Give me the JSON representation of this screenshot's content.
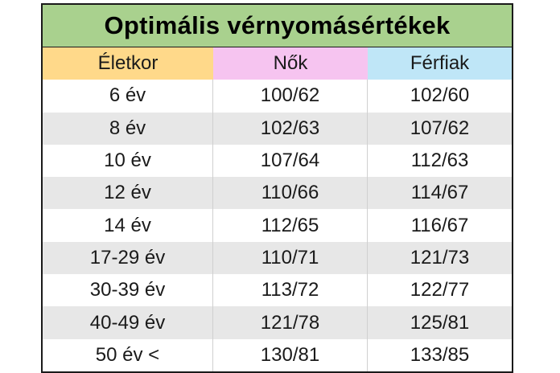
{
  "title": "Optimális vérnyomásértékek",
  "headers": {
    "age": "Életkor",
    "women": "Nők",
    "men": "Férfiak"
  },
  "colors": {
    "title_bg": "#a9d18e",
    "age_header_bg": "#ffd98a",
    "women_header_bg": "#f6c4f0",
    "men_header_bg": "#bfe6f7",
    "alt_row_bg": "#e7e7e7"
  },
  "rows": [
    {
      "age": "6 év",
      "women": "100/62",
      "men": "102/60"
    },
    {
      "age": "8 év",
      "women": "102/63",
      "men": "107/62"
    },
    {
      "age": "10 év",
      "women": "107/64",
      "men": "112/63"
    },
    {
      "age": "12 év",
      "women": "110/66",
      "men": "114/67"
    },
    {
      "age": "14 év",
      "women": "112/65",
      "men": "116/67"
    },
    {
      "age": "17-29 év",
      "women": "110/71",
      "men": "121/73"
    },
    {
      "age": "30-39 év",
      "women": "113/72",
      "men": "122/77"
    },
    {
      "age": "40-49 év",
      "women": "121/78",
      "men": "125/81"
    },
    {
      "age": "50 év <",
      "women": "130/81",
      "men": "133/85"
    }
  ]
}
